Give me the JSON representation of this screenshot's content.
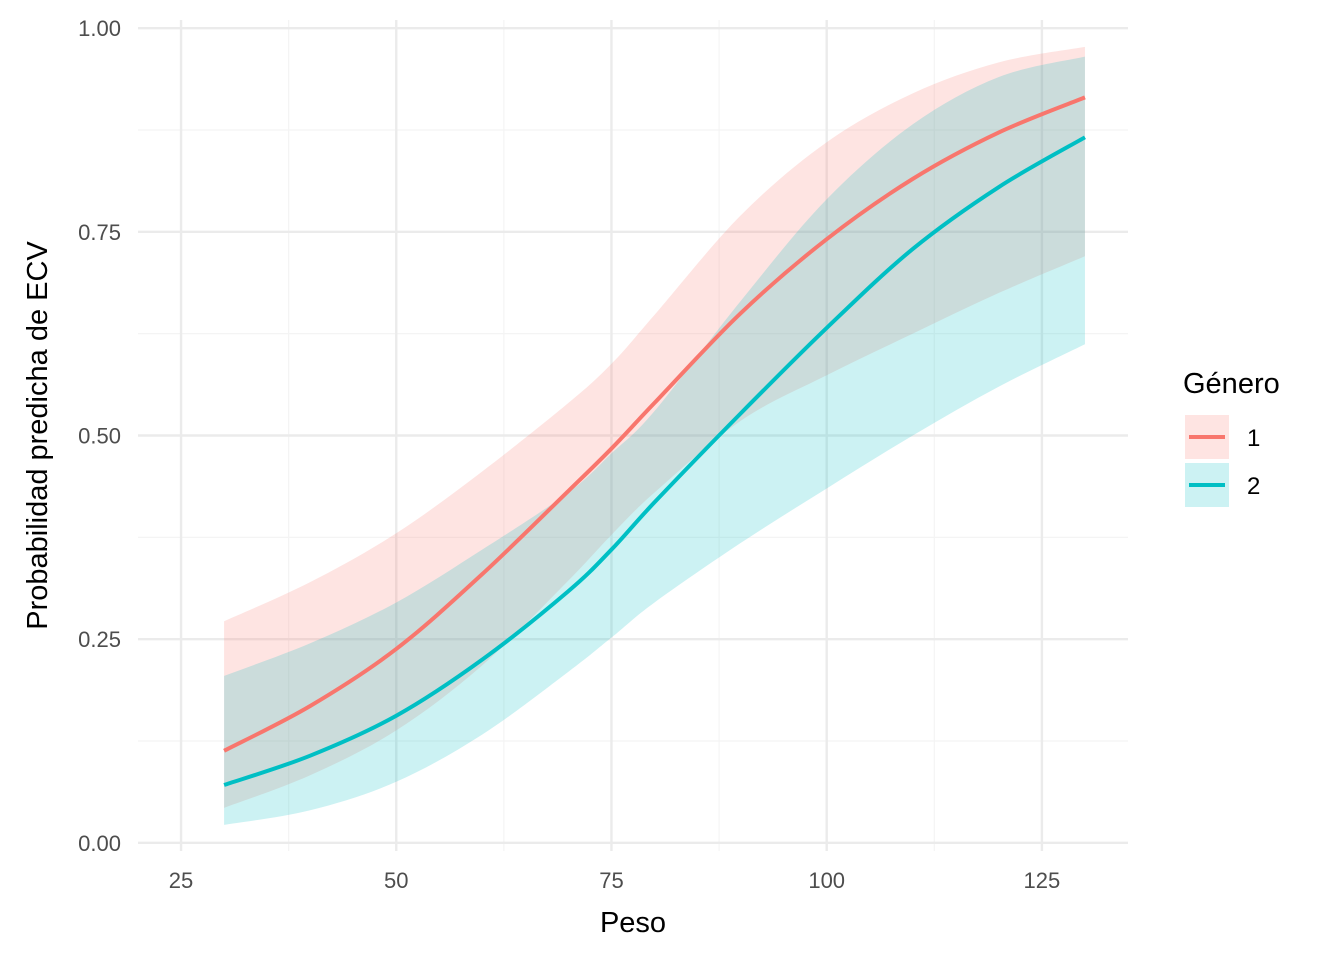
{
  "chart_data": {
    "type": "line",
    "title": "",
    "xlabel": "Peso",
    "ylabel": "Probabilidad predicha de ECV",
    "xlim": [
      20,
      135
    ],
    "ylim": [
      -0.01,
      1.01
    ],
    "x_ticks": [
      25,
      50,
      75,
      100,
      125
    ],
    "x_tick_labels": [
      "25",
      "50",
      "75",
      "100",
      "125"
    ],
    "y_ticks": [
      0,
      0.25,
      0.5,
      0.75,
      1
    ],
    "y_tick_labels": [
      "0.00",
      "0.25",
      "0.50",
      "0.75",
      "1.00"
    ],
    "grid": true,
    "legend": {
      "title": "Género",
      "placement": "right"
    },
    "x": [
      30,
      40,
      50,
      60,
      70,
      75,
      80,
      90,
      100,
      110,
      120,
      130
    ],
    "series": [
      {
        "name": "1",
        "color": "#F8766D",
        "values": [
          0.113,
          0.168,
          0.238,
          0.33,
          0.432,
          0.484,
          0.54,
          0.65,
          0.741,
          0.815,
          0.872,
          0.915
        ],
        "lower": [
          0.043,
          0.083,
          0.138,
          0.218,
          0.322,
          0.378,
          0.43,
          0.518,
          0.574,
          0.625,
          0.675,
          0.72
        ],
        "upper": [
          0.272,
          0.32,
          0.38,
          0.456,
          0.54,
          0.588,
          0.648,
          0.77,
          0.86,
          0.92,
          0.958,
          0.977
        ]
      },
      {
        "name": "2",
        "color": "#00BFC4",
        "values": [
          0.071,
          0.107,
          0.156,
          0.225,
          0.309,
          0.36,
          0.418,
          0.527,
          0.632,
          0.729,
          0.805,
          0.866
        ],
        "lower": [
          0.022,
          0.04,
          0.075,
          0.133,
          0.21,
          0.252,
          0.295,
          0.368,
          0.435,
          0.5,
          0.56,
          0.612
        ],
        "upper": [
          0.205,
          0.245,
          0.295,
          0.36,
          0.43,
          0.478,
          0.53,
          0.665,
          0.79,
          0.882,
          0.94,
          0.965
        ]
      }
    ]
  }
}
